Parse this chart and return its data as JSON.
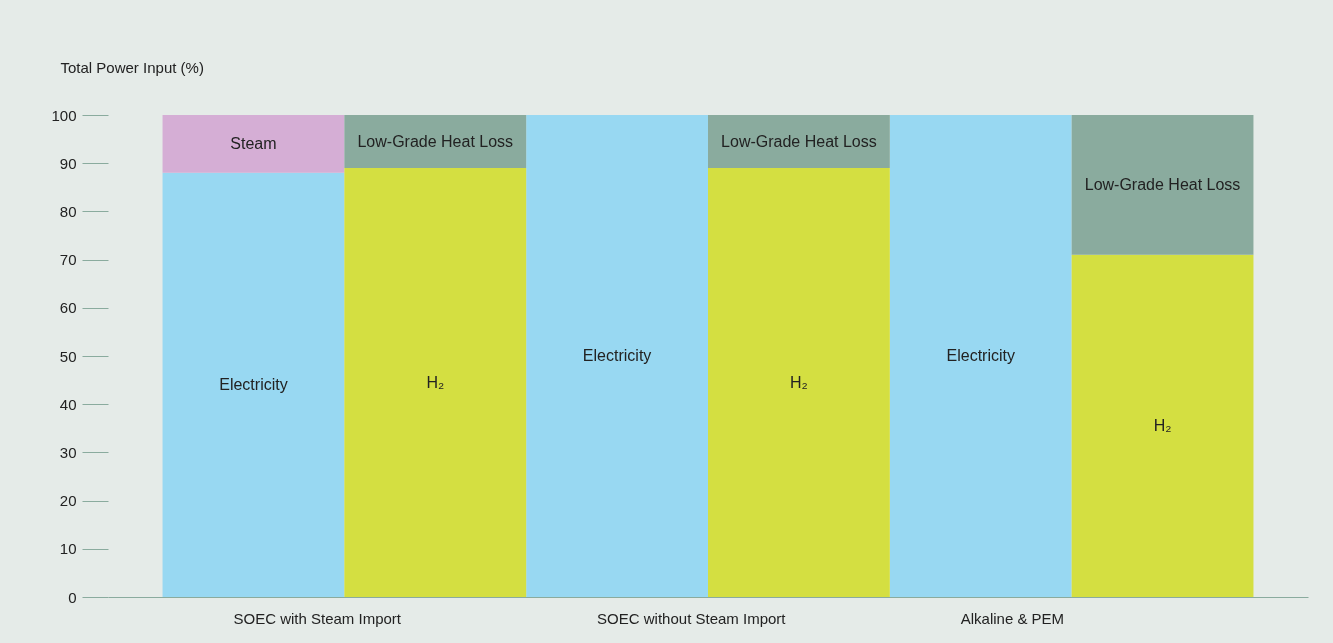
{
  "chart_data": {
    "type": "bar",
    "stacked": true,
    "ylabel": "Total Power Input (%)",
    "categories": [
      "SOEC with Steam Import",
      null,
      "SOEC without Steam Import",
      null,
      "Alkaline & PEM",
      null
    ],
    "series": [
      {
        "name": "Electricity",
        "color": "#98d8f2",
        "values": [
          88,
          null,
          100,
          null,
          100,
          null
        ]
      },
      {
        "name": "Steam",
        "color": "#d5aed5",
        "values": [
          12,
          null,
          null,
          null,
          null,
          null
        ]
      },
      {
        "name": "H₂",
        "color": "#d4df41",
        "values": [
          null,
          89,
          null,
          89,
          null,
          71
        ]
      },
      {
        "name": "Low-Grade Heat Loss",
        "color": "#8aab9e",
        "values": [
          null,
          11,
          null,
          11,
          null,
          29
        ]
      }
    ],
    "ylim": [
      0,
      100
    ],
    "yticks": [
      0,
      10,
      20,
      30,
      40,
      50,
      60,
      70,
      80,
      90,
      100
    ]
  }
}
